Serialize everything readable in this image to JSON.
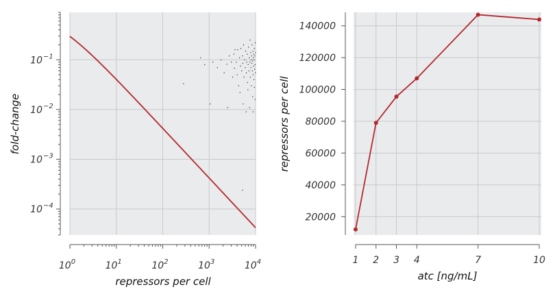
{
  "chart_data": [
    {
      "type": "scatter",
      "xlabel": "repressors per cell",
      "ylabel": "fold-change",
      "xscale": "log",
      "yscale": "log",
      "xlim": [
        1,
        10000
      ],
      "ylim": [
        3e-05,
        0.9
      ],
      "grid": true,
      "x_tick_labels": [
        {
          "base": "10",
          "exp": "0",
          "value": 1
        },
        {
          "base": "10",
          "exp": "1",
          "value": 10
        },
        {
          "base": "10",
          "exp": "2",
          "value": 100
        },
        {
          "base": "10",
          "exp": "3",
          "value": 1000
        },
        {
          "base": "10",
          "exp": "4",
          "value": 10000
        }
      ],
      "y_tick_labels": [
        {
          "base": "10",
          "exp": "−1",
          "value": 0.1
        },
        {
          "base": "10",
          "exp": "−2",
          "value": 0.01
        },
        {
          "base": "10",
          "exp": "−3",
          "value": 0.001
        },
        {
          "base": "10",
          "exp": "−4",
          "value": 0.0001
        }
      ],
      "theory_curve": {
        "model": "1/(1 + R/0.42)",
        "color": "#b2282d"
      },
      "series": [
        {
          "marker_color": "#222222",
          "points": [
            [
              280,
              0.033
            ],
            [
              650,
              0.11
            ],
            [
              800,
              0.08
            ],
            [
              1050,
              0.013
            ],
            [
              1200,
              0.09
            ],
            [
              1500,
              0.07
            ],
            [
              1800,
              0.1
            ],
            [
              2100,
              0.055
            ],
            [
              2400,
              0.082
            ],
            [
              2500,
              0.011
            ],
            [
              2700,
              0.12
            ],
            [
              3000,
              0.09
            ],
            [
              3200,
              0.045
            ],
            [
              3400,
              0.13
            ],
            [
              3500,
              0.068
            ],
            [
              3800,
              0.09
            ],
            [
              4000,
              0.05
            ],
            [
              4100,
              0.16
            ],
            [
              4300,
              0.03
            ],
            [
              4500,
              0.11
            ],
            [
              4700,
              0.075
            ],
            [
              4800,
              0.17
            ],
            [
              5000,
              0.06
            ],
            [
              5200,
              0.12
            ],
            [
              5300,
              0.085
            ],
            [
              5500,
              0.2
            ],
            [
              5600,
              0.045
            ],
            [
              5800,
              0.1
            ],
            [
              6000,
              0.07
            ],
            [
              6100,
              0.15
            ],
            [
              6300,
              0.055
            ],
            [
              6400,
              0.09
            ],
            [
              6600,
              0.13
            ],
            [
              6700,
              0.035
            ],
            [
              6900,
              0.08
            ],
            [
              7000,
              0.18
            ],
            [
              7200,
              0.06
            ],
            [
              7300,
              0.11
            ],
            [
              7500,
              0.09
            ],
            [
              7600,
              0.25
            ],
            [
              7700,
              0.045
            ],
            [
              7800,
              0.14
            ],
            [
              7900,
              0.07
            ],
            [
              8000,
              0.1
            ],
            [
              8100,
              0.03
            ],
            [
              8200,
              0.12
            ],
            [
              8300,
              0.085
            ],
            [
              8400,
              0.2
            ],
            [
              8500,
              0.06
            ],
            [
              8600,
              0.095
            ],
            [
              8700,
              0.15
            ],
            [
              8800,
              0.05
            ],
            [
              8900,
              0.11
            ],
            [
              9000,
              0.075
            ],
            [
              9100,
              0.13
            ],
            [
              9200,
              0.04
            ],
            [
              9300,
              0.1
            ],
            [
              9400,
              0.17
            ],
            [
              9500,
              0.065
            ],
            [
              9600,
              0.12
            ],
            [
              9700,
              0.08
            ],
            [
              9800,
              0.22
            ],
            [
              9900,
              0.055
            ],
            [
              9950,
              0.14
            ],
            [
              5400,
              0.013
            ],
            [
              6200,
              0.009
            ],
            [
              7400,
              0.011
            ],
            [
              8800,
              0.009
            ],
            [
              9700,
              0.016
            ],
            [
              5200,
              0.00024
            ],
            [
              3600,
              0.16
            ],
            [
              4600,
              0.022
            ],
            [
              6800,
              0.025
            ],
            [
              8600,
              0.018
            ],
            [
              9400,
              0.028
            ]
          ]
        }
      ]
    },
    {
      "type": "line",
      "xlabel": "atc [ng/mL]",
      "ylabel": "repressors per cell",
      "xlim": [
        0.9,
        10.1
      ],
      "ylim": [
        8500,
        148500
      ],
      "grid": true,
      "x_ticks": [
        1,
        2,
        3,
        4,
        7,
        10
      ],
      "x_tick_labels": [
        "1",
        "2",
        "3",
        "4",
        "7",
        "10"
      ],
      "y_ticks": [
        20000,
        40000,
        60000,
        80000,
        100000,
        120000,
        140000
      ],
      "y_tick_labels": [
        "20000",
        "40000",
        "60000",
        "80000",
        "100000",
        "120000",
        "140000"
      ],
      "series": [
        {
          "color": "#b2282d",
          "x": [
            1,
            2,
            3,
            4,
            7,
            10
          ],
          "values": [
            12000,
            79000,
            95500,
            107000,
            147000,
            144000
          ]
        }
      ]
    }
  ]
}
